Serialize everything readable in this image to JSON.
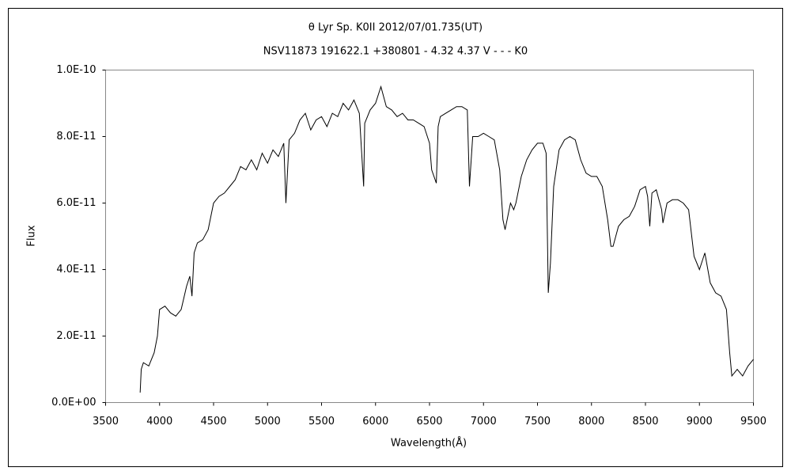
{
  "chart_data": {
    "type": "line",
    "title": "θ Lyr   Sp. K0II   2012/07/01.735(UT)",
    "subtitle": "NSV11873 191622.1 +380801 - 4.32 4.37 V - - - K0",
    "x_label": "Wavelength(Å)",
    "y_label": "Flux",
    "color": "#000000",
    "grid": false,
    "xlim": [
      3500,
      9500
    ],
    "xticks": [
      3500,
      4000,
      4500,
      5000,
      5500,
      6000,
      6500,
      7000,
      7500,
      8000,
      8500,
      9000,
      9500
    ],
    "ylim": [
      0,
      1e-10
    ],
    "yticks": [
      {
        "value": 0,
        "label": "0.0E+00"
      },
      {
        "value": 2e-11,
        "label": "2.0E-11"
      },
      {
        "value": 4e-11,
        "label": "4.0E-11"
      },
      {
        "value": 6e-11,
        "label": "6.0E-11"
      },
      {
        "value": 8e-11,
        "label": "8.0E-11"
      },
      {
        "value": 1e-10,
        "label": "1.0E-10"
      }
    ],
    "x": [
      3820,
      3830,
      3850,
      3900,
      3950,
      3980,
      4000,
      4050,
      4100,
      4150,
      4200,
      4250,
      4280,
      4300,
      4320,
      4350,
      4400,
      4450,
      4500,
      4550,
      4600,
      4650,
      4700,
      4750,
      4800,
      4850,
      4900,
      4950,
      5000,
      5050,
      5100,
      5150,
      5170,
      5200,
      5250,
      5300,
      5350,
      5400,
      5450,
      5500,
      5550,
      5600,
      5650,
      5700,
      5750,
      5800,
      5850,
      5890,
      5900,
      5950,
      6000,
      6050,
      6100,
      6150,
      6200,
      6250,
      6300,
      6350,
      6400,
      6450,
      6500,
      6520,
      6563,
      6580,
      6600,
      6650,
      6700,
      6750,
      6800,
      6850,
      6870,
      6900,
      6950,
      7000,
      7050,
      7100,
      7150,
      7180,
      7200,
      7250,
      7280,
      7300,
      7350,
      7400,
      7450,
      7500,
      7550,
      7580,
      7600,
      7620,
      7650,
      7700,
      7750,
      7800,
      7850,
      7900,
      7950,
      8000,
      8050,
      8100,
      8150,
      8180,
      8200,
      8250,
      8300,
      8350,
      8400,
      8450,
      8500,
      8520,
      8540,
      8560,
      8600,
      8650,
      8662,
      8700,
      8750,
      8800,
      8850,
      8900,
      8950,
      9000,
      9050,
      9100,
      9150,
      9200,
      9250,
      9280,
      9300,
      9350,
      9400,
      9450,
      9500
    ],
    "values": [
      3e-12,
      1e-11,
      1.2e-11,
      1.1e-11,
      1.5e-11,
      2e-11,
      2.8e-11,
      2.9e-11,
      2.7e-11,
      2.6e-11,
      2.8e-11,
      3.5e-11,
      3.8e-11,
      3.2e-11,
      4.5e-11,
      4.8e-11,
      4.9e-11,
      5.2e-11,
      6e-11,
      6.2e-11,
      6.3e-11,
      6.5e-11,
      6.7e-11,
      7.1e-11,
      7e-11,
      7.3e-11,
      7e-11,
      7.5e-11,
      7.2e-11,
      7.6e-11,
      7.4e-11,
      7.8e-11,
      6e-11,
      7.9e-11,
      8.1e-11,
      8.5e-11,
      8.7e-11,
      8.2e-11,
      8.5e-11,
      8.6e-11,
      8.3e-11,
      8.7e-11,
      8.6e-11,
      9e-11,
      8.8e-11,
      9.1e-11,
      8.7e-11,
      6.5e-11,
      8.4e-11,
      8.8e-11,
      9e-11,
      9.5e-11,
      8.9e-11,
      8.8e-11,
      8.6e-11,
      8.7e-11,
      8.5e-11,
      8.5e-11,
      8.4e-11,
      8.3e-11,
      7.8e-11,
      7e-11,
      6.6e-11,
      8.3e-11,
      8.6e-11,
      8.7e-11,
      8.8e-11,
      8.9e-11,
      8.9e-11,
      8.8e-11,
      6.5e-11,
      8e-11,
      8e-11,
      8.1e-11,
      8e-11,
      7.9e-11,
      7e-11,
      5.5e-11,
      5.2e-11,
      6e-11,
      5.8e-11,
      6e-11,
      6.8e-11,
      7.3e-11,
      7.6e-11,
      7.8e-11,
      7.8e-11,
      7.5e-11,
      3.3e-11,
      4.2e-11,
      6.5e-11,
      7.6e-11,
      7.9e-11,
      8e-11,
      7.9e-11,
      7.3e-11,
      6.9e-11,
      6.8e-11,
      6.8e-11,
      6.5e-11,
      5.5e-11,
      4.7e-11,
      4.7e-11,
      5.3e-11,
      5.5e-11,
      5.6e-11,
      5.9e-11,
      6.4e-11,
      6.5e-11,
      6.2e-11,
      5.3e-11,
      6.3e-11,
      6.4e-11,
      5.8e-11,
      5.4e-11,
      6e-11,
      6.1e-11,
      6.1e-11,
      6e-11,
      5.8e-11,
      4.4e-11,
      4e-11,
      4.5e-11,
      3.6e-11,
      3.3e-11,
      3.2e-11,
      2.8e-11,
      1.5e-11,
      8e-12,
      1e-11,
      8e-12,
      1.1e-11,
      1.3e-11
    ]
  }
}
